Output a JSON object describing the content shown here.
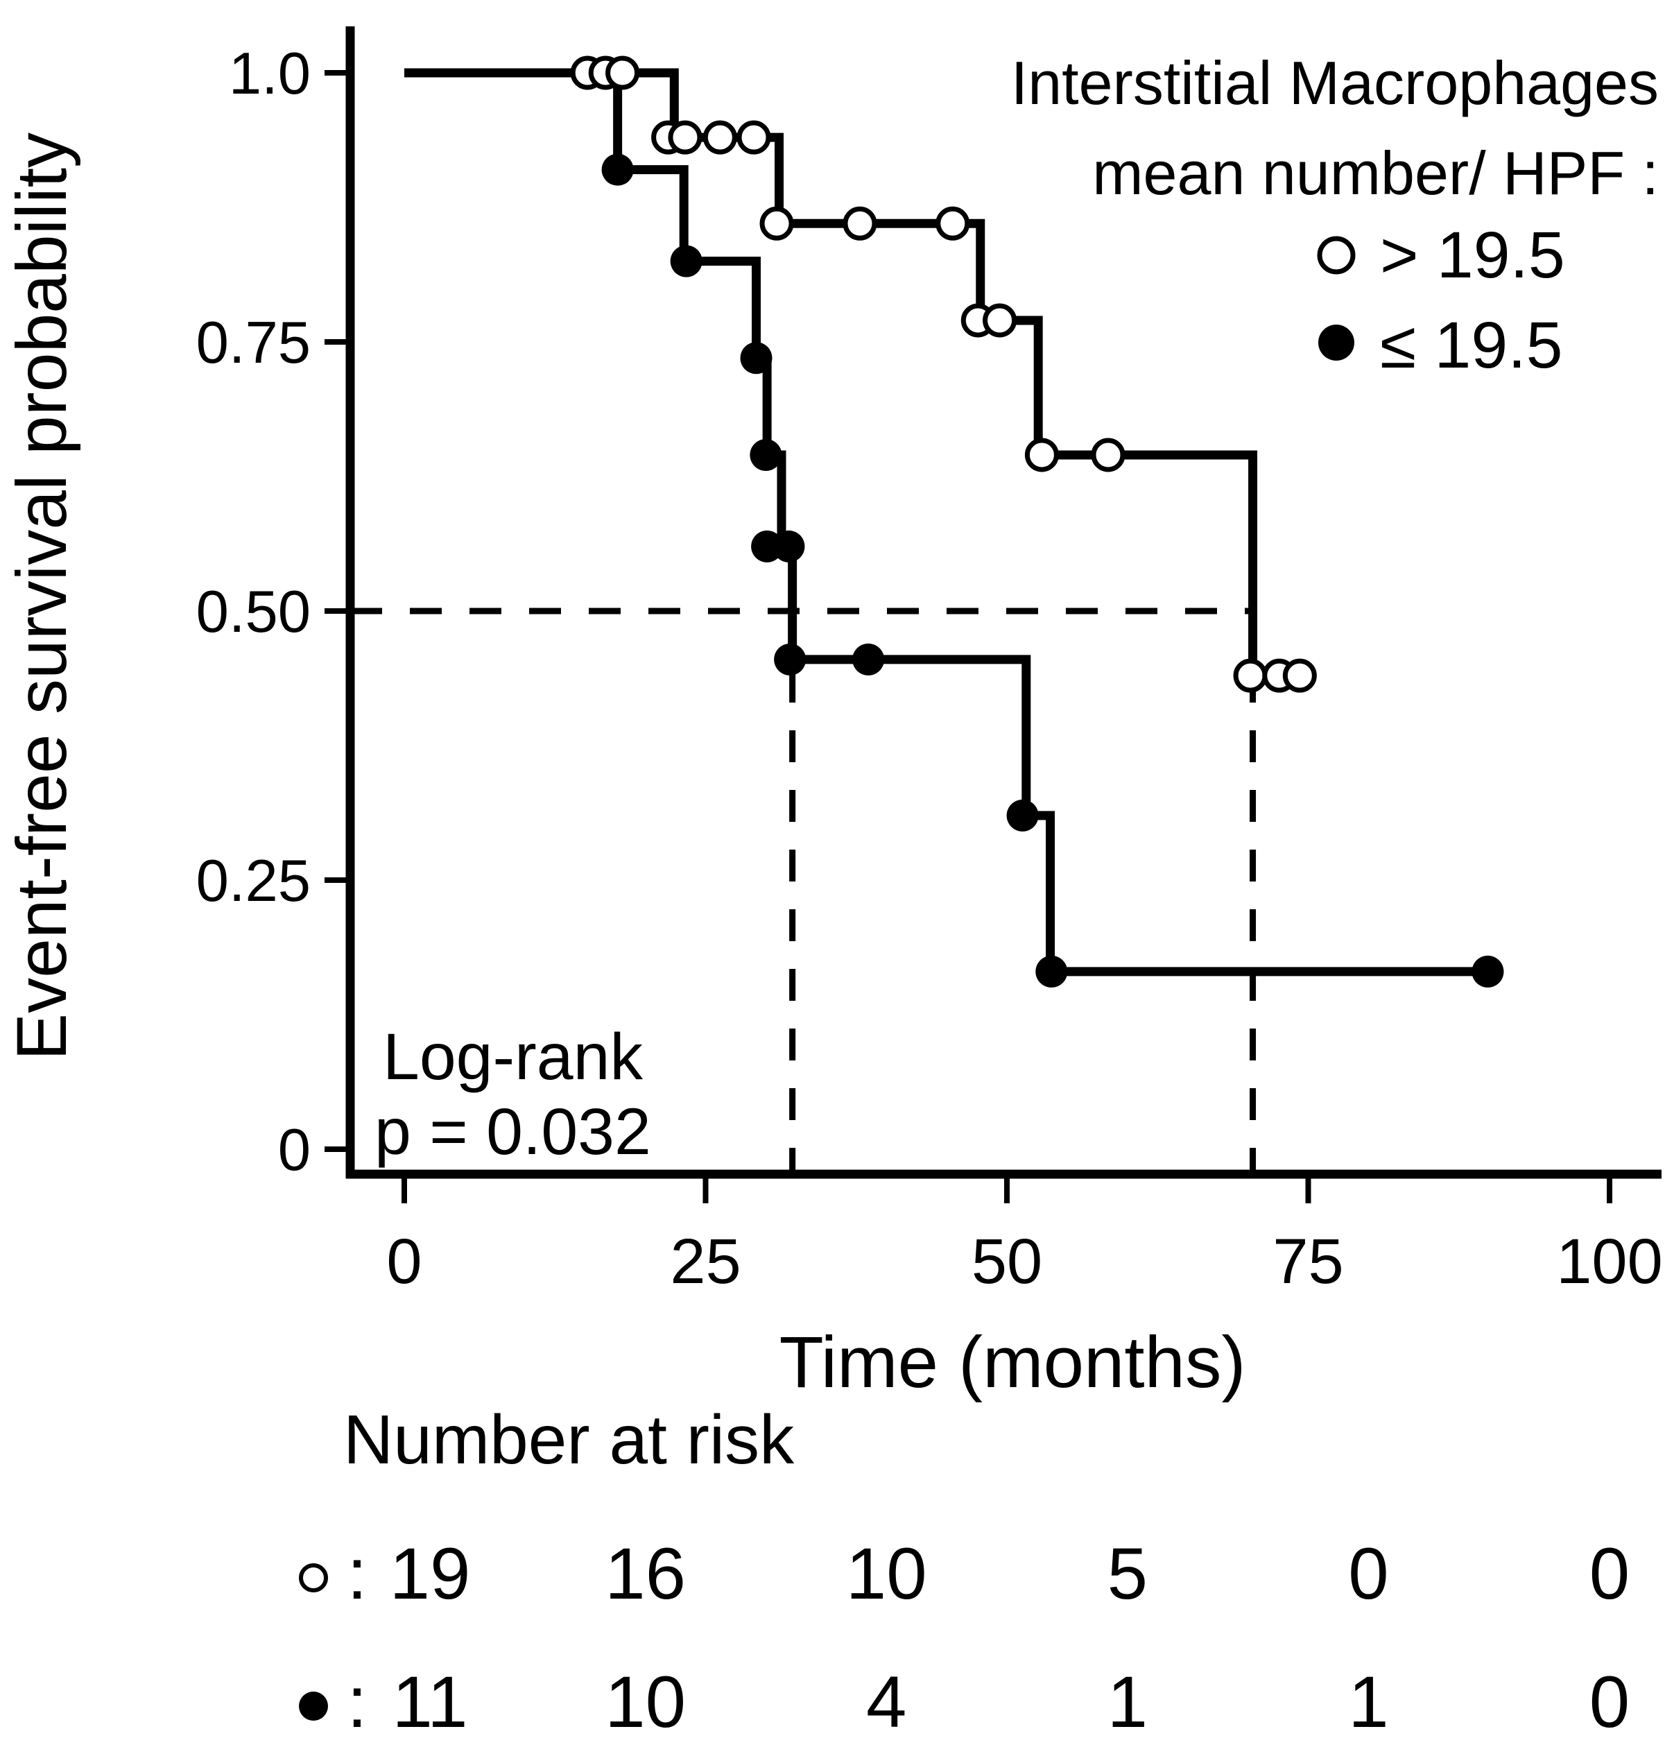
{
  "figure": {
    "background": "#ffffff",
    "ink_color": "#000000"
  },
  "chart_data": {
    "type": "line",
    "subtype": "kaplan-meier-step-curves",
    "xlabel": "Time (months)",
    "ylabel": "Event-free survival probability",
    "x_range": [
      0,
      100
    ],
    "y_range": [
      0,
      1.0
    ],
    "grid": "off",
    "x_ticks": [
      0,
      25,
      50,
      75,
      100
    ],
    "y_ticks": [
      {
        "label": "1.0",
        "value": 1.0
      },
      {
        "label": "0.75",
        "value": 0.75
      },
      {
        "label": "0.50",
        "value": 0.5
      },
      {
        "label": "0.25",
        "value": 0.25
      },
      {
        "label": "0",
        "value": 0
      }
    ],
    "legend": {
      "position": "top-right",
      "title_line1": "Interstitial Macrophages",
      "title_line2": "mean number/ HPF :",
      "items": [
        {
          "marker": "open-circle",
          "label": "≤ 19.5"
        },
        {
          "marker": "filled-circle",
          "label": "> 19.5"
        }
      ]
    },
    "annotation": {
      "line1": "Log-rank",
      "line2": "p = 0.032"
    },
    "median_guides": {
      "probability": 0.5,
      "times": [
        32.2,
        70.4
      ]
    },
    "series": [
      {
        "name": "> 19.5",
        "marker": "filled-circle",
        "drops": [
          [
            17.7,
            0.91
          ],
          [
            23.2,
            0.825
          ],
          [
            29.2,
            0.735
          ],
          [
            30.1,
            0.645
          ],
          [
            31.3,
            0.56
          ],
          [
            32.2,
            0.455
          ],
          [
            51.6,
            0.31
          ],
          [
            53.6,
            0.165
          ]
        ],
        "end_time": 89.9,
        "marks": [
          [
            17.7,
            0.91
          ],
          [
            23.4,
            0.825
          ],
          [
            29.2,
            0.735
          ],
          [
            30.0,
            0.645
          ],
          [
            30.1,
            0.56
          ],
          [
            31.9,
            0.56
          ],
          [
            32.0,
            0.455
          ],
          [
            38.5,
            0.455
          ],
          [
            51.3,
            0.31
          ],
          [
            53.7,
            0.165
          ],
          [
            89.9,
            0.165
          ]
        ]
      },
      {
        "name": "≤ 19.5",
        "marker": "open-circle",
        "drops": [
          [
            22.4,
            0.94
          ],
          [
            31.1,
            0.86
          ],
          [
            47.8,
            0.77
          ],
          [
            52.6,
            0.645
          ],
          [
            70.4,
            0.44
          ]
        ],
        "end_time": 74.5,
        "marks": [
          [
            15.2,
            1.0
          ],
          [
            16.7,
            1.0
          ],
          [
            18.1,
            1.0
          ],
          [
            21.9,
            0.94
          ],
          [
            23.3,
            0.94
          ],
          [
            26.2,
            0.94
          ],
          [
            29.0,
            0.94
          ],
          [
            30.9,
            0.86
          ],
          [
            37.8,
            0.86
          ],
          [
            45.5,
            0.86
          ],
          [
            47.6,
            0.77
          ],
          [
            49.4,
            0.77
          ],
          [
            52.9,
            0.645
          ],
          [
            58.4,
            0.645
          ],
          [
            70.2,
            0.44
          ],
          [
            72.6,
            0.44
          ],
          [
            74.3,
            0.44
          ]
        ]
      }
    ],
    "risk_table": {
      "title": "Number at risk",
      "separator": ":",
      "times": [
        0,
        20,
        40,
        60,
        80,
        100
      ],
      "rows": [
        {
          "symbol": "open-circle",
          "values": [
            19,
            16,
            10,
            5,
            0,
            0
          ]
        },
        {
          "symbol": "filled-circle",
          "values": [
            11,
            10,
            4,
            1,
            1,
            0
          ]
        }
      ]
    }
  }
}
